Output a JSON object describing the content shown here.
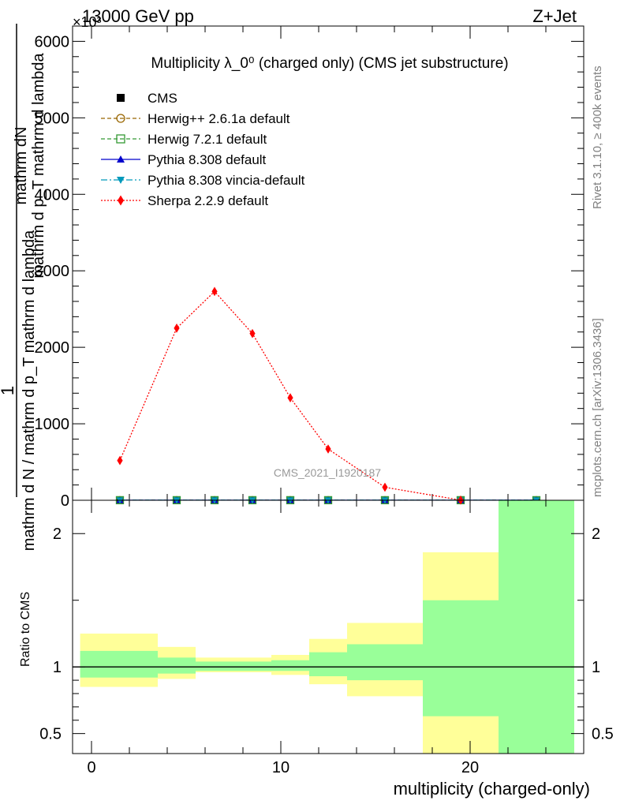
{
  "header": {
    "energy_label": "13000 GeV pp",
    "process_label": "Z+Jet",
    "exponent_label": "×10³"
  },
  "side_labels": {
    "rivet": "Rivet 3.1.10, ≥ 400k events",
    "mcplots": "mcplots.cern.ch [arXiv:1306.3436]"
  },
  "chart_data": [
    {
      "type": "line",
      "title": "Multiplicity λ_0⁰ (charged only) (CMS jet substructure)",
      "ylabel": {
        "numerator": "1",
        "frac_top": "mathrm dN",
        "frac_bottom": "mathrm d p_T mathrm d lambda",
        "denominator": "mathrm d N / mathrm d p_T mathrm d lambda"
      },
      "ylim": [
        0,
        6200000
      ],
      "xlim": [
        -1,
        26
      ],
      "y_ticks": [
        {
          "value": 0,
          "label": "0"
        },
        {
          "value": 1000000,
          "label": "1000"
        },
        {
          "value": 2000000,
          "label": "2000"
        },
        {
          "value": 3000000,
          "label": "3000"
        },
        {
          "value": 4000000,
          "label": "4000"
        },
        {
          "value": 5000000,
          "label": "5000"
        },
        {
          "value": 6000000,
          "label": "6000"
        }
      ],
      "watermark": "CMS_2021_I1920187",
      "legend_position": "top-left",
      "series": [
        {
          "name": "CMS",
          "color": "#000000",
          "marker": "square",
          "line": "none",
          "x": [
            1.5,
            4.5,
            6.5,
            8.5,
            10.5,
            12.5,
            15.5,
            19.5,
            23.5
          ],
          "y": [
            1000,
            1000,
            1000,
            1000,
            1000,
            1000,
            1000,
            1000,
            1000
          ]
        },
        {
          "name": "Herwig++ 2.6.1a default",
          "color": "#996600",
          "marker": "circle-open",
          "line": "dashed",
          "x": [
            1.5,
            4.5,
            6.5,
            8.5,
            10.5,
            12.5,
            15.5,
            19.5,
            23.5
          ],
          "y": [
            1000,
            1000,
            1000,
            1000,
            1000,
            1000,
            1000,
            1000,
            1000
          ]
        },
        {
          "name": "Herwig 7.2.1 default",
          "color": "#339933",
          "marker": "square-open",
          "line": "dashed",
          "x": [
            1.5,
            4.5,
            6.5,
            8.5,
            10.5,
            12.5,
            15.5,
            19.5,
            23.5
          ],
          "y": [
            1000,
            1000,
            1000,
            1000,
            1000,
            1000,
            1000,
            1000,
            1000
          ]
        },
        {
          "name": "Pythia 8.308 default",
          "color": "#0000cc",
          "marker": "triangle-up",
          "line": "solid",
          "x": [
            1.5,
            4.5,
            6.5,
            8.5,
            10.5,
            12.5,
            15.5,
            19.5,
            23.5
          ],
          "y": [
            1000,
            1000,
            1000,
            1000,
            1000,
            1000,
            1000,
            1000,
            1000
          ]
        },
        {
          "name": "Pythia 8.308 vincia-default",
          "color": "#0099bb",
          "marker": "triangle-down",
          "line": "dashdot",
          "x": [
            1.5,
            4.5,
            6.5,
            8.5,
            10.5,
            12.5,
            15.5,
            19.5,
            23.5
          ],
          "y": [
            1000,
            1000,
            1000,
            1000,
            1000,
            1000,
            1000,
            1000,
            1000
          ]
        },
        {
          "name": "Sherpa 2.2.9 default",
          "color": "#ff0000",
          "marker": "diamond",
          "line": "dotted",
          "x": [
            1.5,
            4.5,
            6.5,
            8.5,
            10.5,
            12.5,
            15.5,
            19.5
          ],
          "y": [
            520000,
            2250000,
            2730000,
            2180000,
            1340000,
            670000,
            170000,
            2000
          ]
        }
      ]
    },
    {
      "type": "area",
      "ylabel": "Ratio to CMS",
      "xlabel": "multiplicity (charged-only)",
      "ylim": [
        0.35,
        2.25
      ],
      "xlim": [
        -1,
        26
      ],
      "reference_line": 1,
      "y_ticks": [
        {
          "value": 0.5,
          "label": "0.5"
        },
        {
          "value": 1,
          "label": "1"
        },
        {
          "value": 2,
          "label": "2"
        }
      ],
      "x_ticks": [
        {
          "value": 0,
          "label": "0"
        },
        {
          "value": 10,
          "label": "10"
        },
        {
          "value": 20,
          "label": "20"
        }
      ],
      "bands": [
        {
          "x_low": -0.6,
          "x_high": 3.5,
          "inner_low": 0.92,
          "inner_high": 1.12,
          "outer_low": 0.85,
          "outer_high": 1.25
        },
        {
          "x_low": 3.5,
          "x_high": 5.5,
          "inner_low": 0.95,
          "inner_high": 1.07,
          "outer_low": 0.91,
          "outer_high": 1.15
        },
        {
          "x_low": 5.5,
          "x_high": 9.5,
          "inner_low": 0.97,
          "inner_high": 1.04,
          "outer_low": 0.96,
          "outer_high": 1.07
        },
        {
          "x_low": 9.5,
          "x_high": 11.5,
          "inner_low": 0.97,
          "inner_high": 1.05,
          "outer_low": 0.94,
          "outer_high": 1.09
        },
        {
          "x_low": 11.5,
          "x_high": 13.5,
          "inner_low": 0.93,
          "inner_high": 1.11,
          "outer_low": 0.87,
          "outer_high": 1.21
        },
        {
          "x_low": 13.5,
          "x_high": 17.5,
          "inner_low": 0.9,
          "inner_high": 1.17,
          "outer_low": 0.78,
          "outer_high": 1.33
        },
        {
          "x_low": 17.5,
          "x_high": 21.5,
          "inner_low": 0.63,
          "inner_high": 1.5,
          "outer_low": 0.35,
          "outer_high": 1.86
        },
        {
          "x_low": 21.5,
          "x_high": 25.5,
          "inner_low": 0.35,
          "inner_high": 2.25,
          "outer_low": 0.35,
          "outer_high": 2.25
        }
      ],
      "colors": {
        "inner": "#99ff99",
        "outer": "#ffff99"
      }
    }
  ]
}
